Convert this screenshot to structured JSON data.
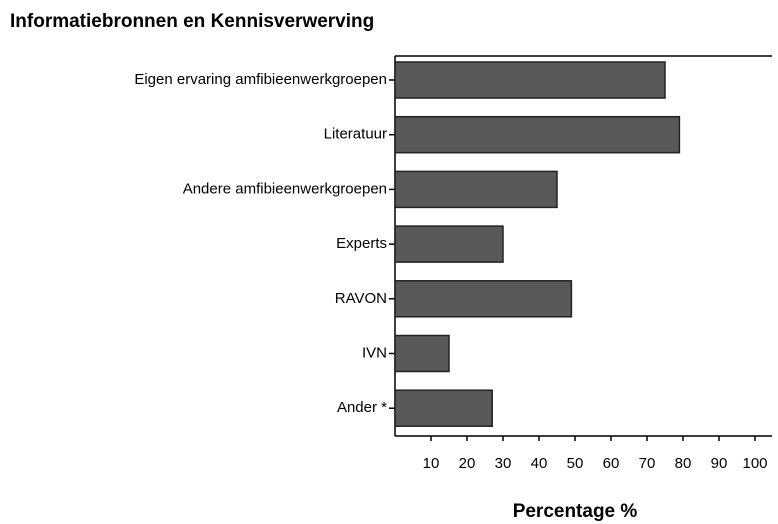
{
  "chart_data": {
    "type": "bar",
    "orientation": "horizontal",
    "title": "Informatiebronnen en Kennisverwerving",
    "xlabel": "Percentage %",
    "categories": [
      "Eigen ervaring amfibieenwerkgroepen",
      "Literatuur",
      "Andere amfibieenwerkgroepen",
      "Experts",
      "RAVON",
      "IVN",
      "Ander *"
    ],
    "values": [
      75,
      79,
      45,
      30,
      49,
      15,
      27
    ],
    "color": "#595959",
    "xlim": [
      0,
      100
    ],
    "xticks": [
      10,
      20,
      30,
      40,
      50,
      60,
      70,
      80,
      90,
      100
    ]
  }
}
